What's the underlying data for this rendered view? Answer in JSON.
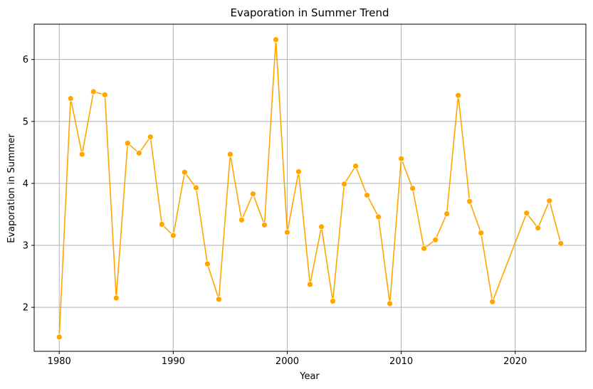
{
  "chart_data": {
    "type": "line",
    "title": "Evaporation in Summer Trend",
    "xlabel": "Year",
    "ylabel": "Evaporation in Summer",
    "color": "#FFA500",
    "grid": true,
    "xlim": [
      1977.8,
      2026.2
    ],
    "ylim": [
      1.29,
      6.57
    ],
    "xticks": [
      1980,
      1990,
      2000,
      2010,
      2020
    ],
    "yticks": [
      2,
      3,
      4,
      5,
      6
    ],
    "series": [
      {
        "x": [
          1980,
          1981,
          1982,
          1983,
          1984,
          1985,
          1986,
          1987,
          1988,
          1989,
          1990,
          1991,
          1992,
          1993,
          1994,
          1995,
          1996,
          1997,
          1998,
          1999,
          2000,
          2001,
          2002,
          2003,
          2004,
          2005,
          2006,
          2007,
          2008,
          2009,
          2010,
          2011,
          2012,
          2013,
          2014,
          2015,
          2016,
          2017,
          2018,
          2021,
          2022,
          2023,
          2024
        ],
        "y": [
          1.52,
          5.37,
          4.47,
          5.48,
          5.43,
          2.15,
          4.65,
          4.49,
          4.75,
          3.34,
          3.16,
          4.18,
          3.93,
          2.7,
          2.13,
          4.47,
          3.41,
          3.83,
          3.33,
          6.32,
          3.21,
          4.19,
          2.37,
          3.3,
          2.1,
          3.99,
          4.28,
          3.81,
          3.46,
          2.06,
          4.4,
          3.92,
          2.95,
          3.09,
          3.51,
          5.42,
          3.71,
          3.2,
          2.09,
          3.52,
          3.28,
          3.72,
          3.03
        ]
      }
    ]
  }
}
